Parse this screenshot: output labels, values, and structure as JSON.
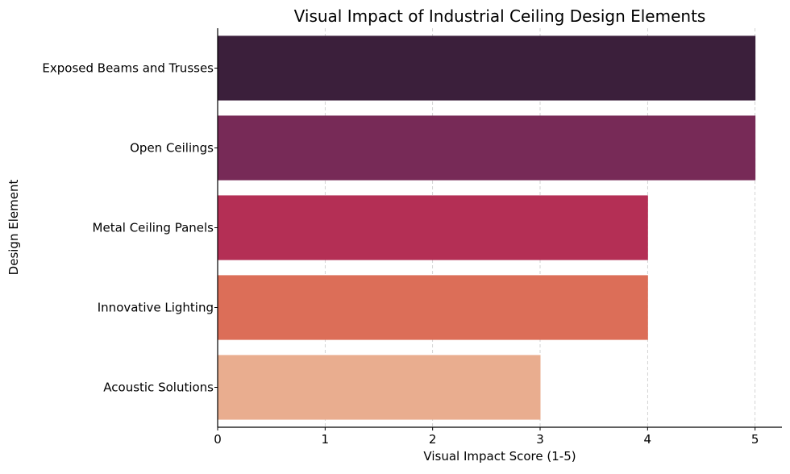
{
  "chart_data": {
    "type": "bar",
    "orientation": "horizontal",
    "title": "Visual Impact of Industrial Ceiling Design Elements",
    "xlabel": "Visual Impact Score (1-5)",
    "ylabel": "Design Element",
    "categories": [
      "Exposed Beams and Trusses",
      "Open Ceilings",
      "Metal Ceiling Panels",
      "Innovative Lighting",
      "Acoustic Solutions"
    ],
    "values": [
      5,
      5,
      4,
      4,
      3
    ],
    "colors": [
      "#3b1f3b",
      "#772a57",
      "#b42f55",
      "#dc6e58",
      "#e9ad8f"
    ],
    "xlim": [
      0,
      5.25
    ],
    "xticks": [
      0,
      1,
      2,
      3,
      4,
      5
    ],
    "xtick_labels": [
      "0",
      "1",
      "2",
      "3",
      "4",
      "5"
    ],
    "grid": "x-dashed",
    "legend": "none"
  }
}
